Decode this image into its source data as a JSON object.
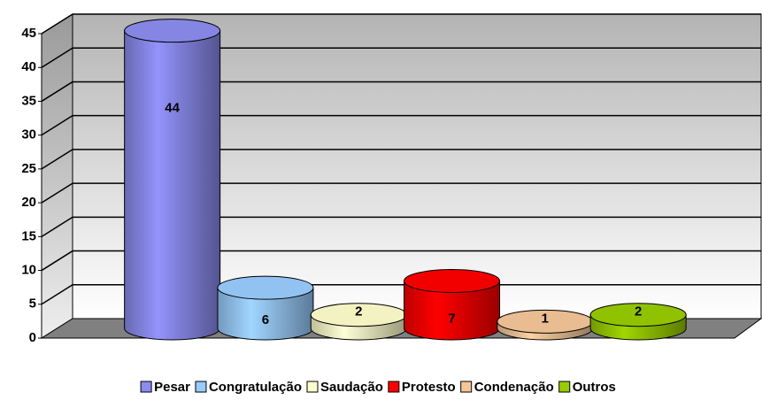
{
  "chart_data": {
    "type": "cylinder-bar",
    "categories": [
      "Pesar",
      "Congratulação",
      "Saudação",
      "Protesto",
      "Condenação",
      "Outros"
    ],
    "values": [
      44,
      6,
      2,
      7,
      1,
      2
    ],
    "colors": [
      "#8c8cf0",
      "#99ccff",
      "#ffffcc",
      "#ff0000",
      "#f5c699",
      "#99cc00"
    ],
    "ylim": [
      0,
      45
    ],
    "yticks": [
      0,
      5,
      10,
      15,
      20,
      25,
      30,
      35,
      40,
      45
    ],
    "grid": true,
    "legend": "bottom"
  }
}
